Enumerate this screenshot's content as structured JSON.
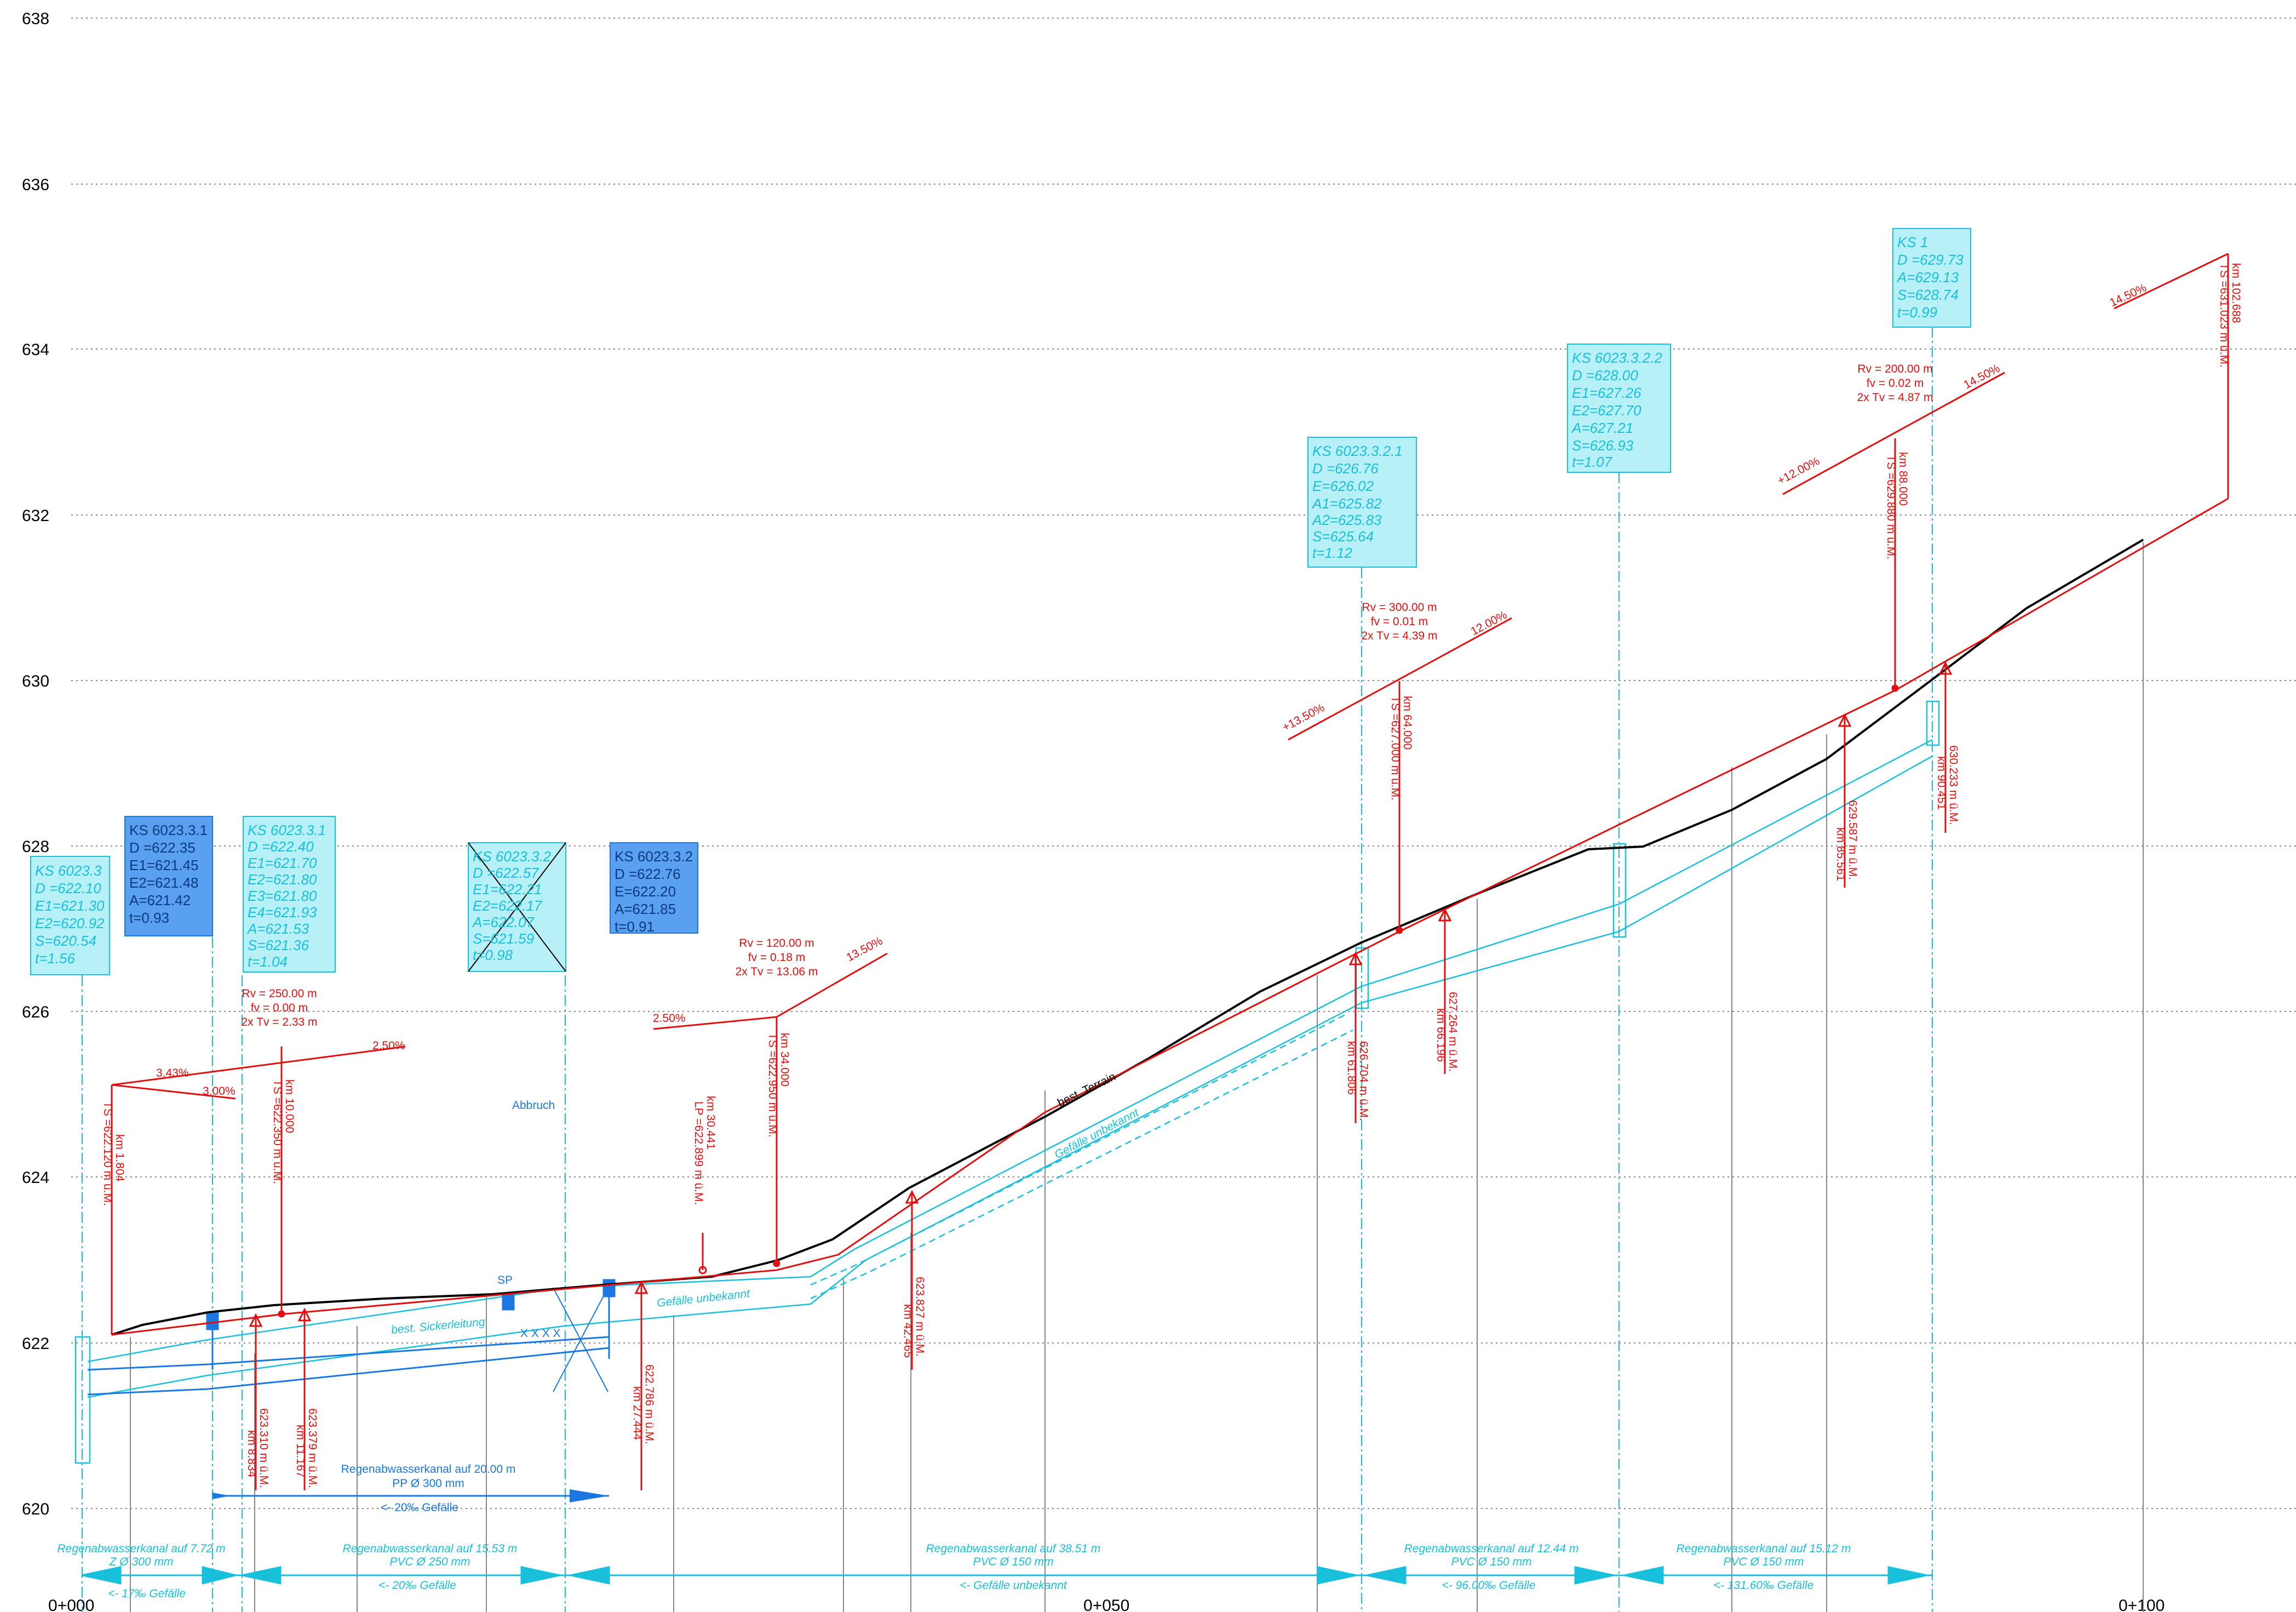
{
  "axis": {
    "y_ticks": [
      "638",
      "636",
      "634",
      "632",
      "630",
      "628",
      "626",
      "624",
      "622",
      "620"
    ],
    "x_ticks": [
      "0+000",
      "0+050",
      "0+100"
    ]
  },
  "structures": [
    {
      "id": "ks6023-3",
      "style": "cyan-italic",
      "lines": [
        "KS 6023.3",
        "D =622.10",
        "E1=621.30",
        "E2=620.92",
        "S=620.54",
        "t=1.56"
      ]
    },
    {
      "id": "ks6023-3-1-new",
      "style": "blue",
      "lines": [
        "KS 6023.3.1",
        "D =622.35",
        "E1=621.45",
        "E2=621.48",
        "A=621.42",
        "t=0.93"
      ]
    },
    {
      "id": "ks6023-3-1-old",
      "style": "cyan-italic",
      "lines": [
        "KS 6023.3.1",
        "D =622.40",
        "E1=621.70",
        "E2=621.80",
        "E3=621.80",
        "E4=621.93",
        "A=621.53",
        "S=621.36",
        "t=1.04"
      ]
    },
    {
      "id": "ks6023-3-2-old",
      "style": "cyan-crossed",
      "lines": [
        "KS 6023.3.2",
        "D =622.57",
        "E1=622.21",
        "E2=622.17",
        "A=622.07",
        "S=621.59",
        "t=0.98"
      ]
    },
    {
      "id": "ks6023-3-2-new",
      "style": "blue",
      "lines": [
        "KS 6023.3.2",
        "D =622.76",
        "E=622.20",
        "A=621.85",
        "t=0.91"
      ]
    },
    {
      "id": "ks6023-3-2-1",
      "style": "cyan-italic",
      "lines": [
        "KS 6023.3.2.1",
        "D =626.76",
        "E=626.02",
        "A1=625.82",
        "A2=625.83",
        "S=625.64",
        "t=1.12"
      ]
    },
    {
      "id": "ks6023-3-2-2",
      "style": "cyan-italic",
      "lines": [
        "KS 6023.3.2.2",
        "D =628.00",
        "E1=627.26",
        "E2=627.70",
        "A=627.21",
        "S=626.93",
        "t=1.07"
      ]
    },
    {
      "id": "ks1",
      "style": "cyan-italic",
      "lines": [
        "KS 1",
        "D =629.73",
        "A=629.13",
        "S=628.74",
        "t=0.99"
      ]
    }
  ],
  "vertical_curves": [
    {
      "id": "vc1",
      "lines": [
        "Rv = 250.00 m",
        "fv = 0.00 m",
        "2x Tv = 2.33 m"
      ]
    },
    {
      "id": "vc2",
      "lines": [
        "Rv = 120.00 m",
        "fv = 0.18 m",
        "2x Tv = 13.06 m"
      ]
    },
    {
      "id": "vc3",
      "lines": [
        "Rv = 300.00 m",
        "fv = 0.01 m",
        "2x Tv = 4.39 m"
      ]
    },
    {
      "id": "vc4",
      "lines": [
        "Rv = 200.00 m",
        "fv = 0.02 m",
        "2x Tv = 4.87 m"
      ]
    }
  ],
  "grades": [
    "3.43%",
    "3.00%",
    "2.50%",
    "2.50%",
    "13.50%",
    "+13.50%",
    "12.00%",
    "+12.00%",
    "14.50%",
    "14.50%"
  ],
  "stations_tangent": [
    {
      "id": "st1",
      "lines": [
        "km 1.804",
        "TS =622.120 m ü.M."
      ]
    },
    {
      "id": "st2",
      "lines": [
        "km 10.000",
        "TS =622.350 m ü.M."
      ]
    },
    {
      "id": "st3",
      "lines": [
        "km 30.441",
        "LP =622.899 m ü.M."
      ]
    },
    {
      "id": "st4",
      "lines": [
        "km 34.000",
        "TS =622.950 m ü.M."
      ]
    },
    {
      "id": "st5",
      "lines": [
        "km 64.000",
        "TS =627.000 m ü.M."
      ]
    },
    {
      "id": "st6",
      "lines": [
        "km 88.000",
        "TS =629.880 m ü.M."
      ]
    },
    {
      "id": "st7",
      "lines": [
        "km 102.688",
        "TS =631.023 m ü.M."
      ]
    }
  ],
  "stations_below": [
    {
      "id": "sb1",
      "lines": [
        "623.310 m ü.M.",
        "km 8.834"
      ]
    },
    {
      "id": "sb2",
      "lines": [
        "623.379 m ü.M.",
        "km 11.167"
      ]
    },
    {
      "id": "sb3",
      "lines": [
        "622.786 m ü.M.",
        "km 27.444"
      ]
    },
    {
      "id": "sb4",
      "lines": [
        "623.827 m ü.M.",
        "km 42.465"
      ]
    },
    {
      "id": "sb5",
      "lines": [
        "626.704 m ü.M.",
        "km 61.806"
      ]
    },
    {
      "id": "sb6",
      "lines": [
        "627.264 m ü.M.",
        "km 66.196"
      ]
    },
    {
      "id": "sb7",
      "lines": [
        "629.587 m ü.M.",
        "km 85.561"
      ]
    },
    {
      "id": "sb8",
      "lines": [
        "630.233 m ü.M.",
        "km 90.451"
      ]
    }
  ],
  "labels": {
    "abbruch": "Abbruch",
    "sp": "SP",
    "sickerleitung": "best. Sickerleitung",
    "gefaelle_unbekannt_1": "Gefälle unbekannt",
    "gefaelle_unbekannt_2": "Gefälle unbekannt",
    "terrain": "best. Terrain",
    "new_pipe": [
      "Regenabwasserkanal auf 20.00 m",
      "PP Ø 300 mm"
    ],
    "new_pipe_slope": "<- 20‰ Gefälle"
  },
  "pipe_sections": [
    {
      "id": "ps1",
      "lines": [
        "Regenabwasserkanal auf 7.72 m",
        "Z Ø 300 mm"
      ],
      "slope": "<- 17‰ Gefälle"
    },
    {
      "id": "ps2",
      "lines": [
        "Regenabwasserkanal auf 15.53 m",
        "PVC Ø 250 mm"
      ],
      "slope": "<- 20‰ Gefälle"
    },
    {
      "id": "ps3",
      "lines": [
        "Regenabwasserkanal auf 38.51 m",
        "PVC Ø 150 mm"
      ],
      "slope": "<- Gefälle unbekannt"
    },
    {
      "id": "ps4",
      "lines": [
        "Regenabwasserkanal auf 12.44 m",
        "PVC Ø 150 mm"
      ],
      "slope": "<- 96.00‰ Gefälle"
    },
    {
      "id": "ps5",
      "lines": [
        "Regenabwasserkanal auf 15.12 m",
        "PVC Ø 150 mm"
      ],
      "slope": "<- 131.60‰ Gefälle"
    }
  ],
  "colors": {
    "red": "#e01010",
    "cyan": "#18c0dc",
    "blue": "#1a78e0",
    "black": "#000000"
  }
}
